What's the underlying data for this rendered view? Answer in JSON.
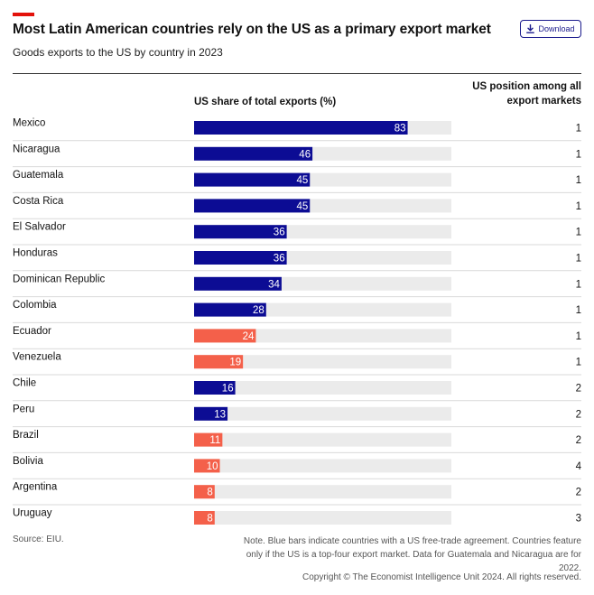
{
  "header": {
    "title": "Most Latin American countries rely on the US as a primary export market",
    "subtitle": "Goods exports to the US by country in 2023",
    "download_label": "Download"
  },
  "columns": {
    "share_label": "US share of total exports (%)",
    "rank_label": "US position among all export markets"
  },
  "colors": {
    "fta": "#0c0c94",
    "no_fta": "#f4604a",
    "track": "#ebebeb",
    "accent": "#e3120b"
  },
  "chart_data": {
    "type": "bar",
    "orientation": "horizontal",
    "title": "Most Latin American countries rely on the US as a primary export market",
    "subtitle": "Goods exports to the US by country in 2023",
    "xlabel": "US share of total exports (%)",
    "xlim": [
      0,
      100
    ],
    "categories": [
      "Mexico",
      "Nicaragua",
      "Guatemala",
      "Costa Rica",
      "El Salvador",
      "Honduras",
      "Dominican Republic",
      "Colombia",
      "Ecuador",
      "Venezuela",
      "Chile",
      "Peru",
      "Brazil",
      "Bolivia",
      "Argentina",
      "Uruguay"
    ],
    "values": [
      83,
      46,
      45,
      45,
      36,
      36,
      34,
      28,
      24,
      19,
      16,
      13,
      11,
      10,
      8,
      8
    ],
    "fta": [
      true,
      true,
      true,
      true,
      true,
      true,
      true,
      true,
      false,
      false,
      true,
      true,
      false,
      false,
      false,
      false
    ],
    "us_rank": [
      1,
      1,
      1,
      1,
      1,
      1,
      1,
      1,
      1,
      1,
      2,
      2,
      2,
      4,
      2,
      3
    ]
  },
  "footer": {
    "source": "Source: EIU.",
    "note": "Note. Blue bars indicate countries with a US free-trade agreement. Countries feature only if the US is a top-four export market. Data for Guatemala and Nicaragua are for 2022.",
    "copyright": "Copyright © The Economist Intelligence Unit 2024. All rights reserved."
  }
}
